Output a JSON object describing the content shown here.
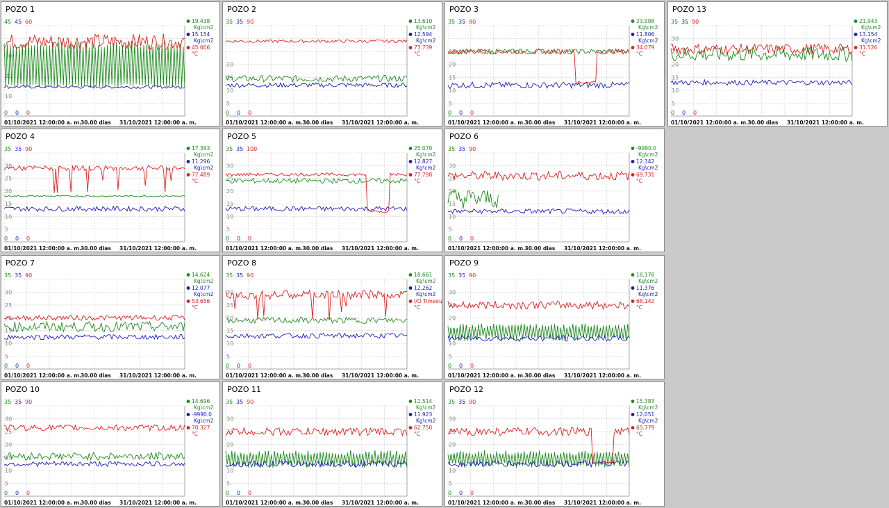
{
  "colors": {
    "pressure_1": "#1d8a1d",
    "pressure_2": "#1a1ab4",
    "temperature": "#dc1e1e",
    "grid": "#c8c8c8"
  },
  "x_axis": {
    "start": "01/10/2021 12:00:00 a. m.",
    "span": "30.00 dias",
    "end": "31/10/2021 12:00:00 a. m."
  },
  "chart_data": [
    {
      "id": "p1",
      "title": "POZO 1",
      "type": "line",
      "top": {
        "green": "45",
        "blue": "45",
        "red": "60"
      },
      "bottom": {
        "green": "0",
        "blue": "0",
        "red": "0"
      },
      "yticks": [
        "30",
        "20",
        "10"
      ],
      "ylim": [
        0,
        45
      ],
      "series": [
        {
          "name": "Kg\\cm2",
          "value": "19.438",
          "color": "#1d8a1d",
          "level": 34,
          "noise": 7,
          "pattern": "osc",
          "osc_low": 14
        },
        {
          "name": "Kg\\cm2",
          "value": "15.154",
          "color": "#1a1ab4",
          "level": 14.5,
          "noise": 0.8,
          "pattern": "flat"
        },
        {
          "name": "°C",
          "value": "45.006",
          "color": "#dc1e1e",
          "level": 37,
          "noise": 4,
          "pattern": "noisy"
        }
      ]
    },
    {
      "id": "p2",
      "title": "POZO 2",
      "type": "line",
      "top": {
        "green": "35",
        "blue": "35",
        "red": "90"
      },
      "bottom": {
        "green": "0",
        "blue": "0",
        "red": "0"
      },
      "yticks": [
        "20",
        "15",
        "10",
        "5"
      ],
      "ylim": [
        0,
        35
      ],
      "series": [
        {
          "name": "Kg\\cm2",
          "value": "13.610",
          "color": "#1d8a1d",
          "level": 14.5,
          "noise": 1.3,
          "pattern": "noisy"
        },
        {
          "name": "Kg\\cm2",
          "value": "12.594",
          "color": "#1a1ab4",
          "level": 12,
          "noise": 0.9,
          "pattern": "noisy"
        },
        {
          "name": "°C",
          "value": "73.739",
          "color": "#dc1e1e",
          "level": 29,
          "noise": 0.6,
          "pattern": "flat"
        }
      ]
    },
    {
      "id": "p3",
      "title": "POZO 3",
      "type": "line",
      "top": {
        "green": "35",
        "blue": "35",
        "red": "90"
      },
      "bottom": {
        "green": "0",
        "blue": "0",
        "red": "0"
      },
      "yticks": [
        "25",
        "20",
        "15",
        "10",
        "5"
      ],
      "ylim": [
        0,
        35
      ],
      "series": [
        {
          "name": "Kg\\cm2",
          "value": "23.908",
          "color": "#1d8a1d",
          "level": 25,
          "noise": 1.0,
          "pattern": "noisy"
        },
        {
          "name": "Kg\\cm2",
          "value": "11.806",
          "color": "#1a1ab4",
          "level": 12,
          "noise": 1.2,
          "pattern": "noisy"
        },
        {
          "name": "°C",
          "value": "34.079",
          "color": "#dc1e1e",
          "level": 25,
          "noise": 1.0,
          "pattern": "drop",
          "drop_level": 13,
          "drop_from": 0.7
        }
      ]
    },
    {
      "id": "p13",
      "title": "POZO 13",
      "type": "line",
      "top": {
        "green": "35",
        "blue": "35",
        "red": "90"
      },
      "bottom": {
        "green": "0",
        "blue": "0",
        "red": "0"
      },
      "yticks": [
        "30",
        "25",
        "20",
        "15",
        "10",
        "5"
      ],
      "ylim": [
        0,
        35
      ],
      "series": [
        {
          "name": "Kg\\cm2",
          "value": "21.943",
          "color": "#1d8a1d",
          "level": 24,
          "noise": 3,
          "pattern": "noisy"
        },
        {
          "name": "Kg\\cm2",
          "value": "13.154",
          "color": "#1a1ab4",
          "level": 13,
          "noise": 1.0,
          "pattern": "noisy"
        },
        {
          "name": "°C",
          "value": "31.526",
          "color": "#dc1e1e",
          "level": 26,
          "noise": 2,
          "pattern": "noisy"
        }
      ]
    },
    {
      "id": "p4",
      "title": "POZO 4",
      "type": "line",
      "top": {
        "green": "35",
        "blue": "35",
        "red": "90"
      },
      "bottom": {
        "green": "0",
        "blue": "0",
        "red": "0"
      },
      "yticks": [
        "30",
        "25",
        "20",
        "15",
        "10",
        "5"
      ],
      "ylim": [
        0,
        35
      ],
      "series": [
        {
          "name": "Kg\\cm2",
          "value": "17.393",
          "color": "#1d8a1d",
          "level": 18,
          "noise": 0.3,
          "pattern": "flat"
        },
        {
          "name": "Kg\\cm2",
          "value": "11.296",
          "color": "#1a1ab4",
          "level": 13,
          "noise": 1.0,
          "pattern": "noisy"
        },
        {
          "name": "°C",
          "value": "77.489",
          "color": "#dc1e1e",
          "level": 29,
          "noise": 1.0,
          "pattern": "spikes"
        }
      ]
    },
    {
      "id": "p5",
      "title": "POZO 5",
      "type": "line",
      "top": {
        "green": "35",
        "blue": "35",
        "red": "100"
      },
      "bottom": {
        "green": "0",
        "blue": "0",
        "red": "0"
      },
      "yticks": [
        "30",
        "25",
        "20",
        "15",
        "10",
        "5"
      ],
      "ylim": [
        0,
        35
      ],
      "series": [
        {
          "name": "Kg\\cm2",
          "value": "25.070",
          "color": "#1d8a1d",
          "level": 24,
          "noise": 1.0,
          "pattern": "noisy"
        },
        {
          "name": "Kg\\cm2",
          "value": "12.827",
          "color": "#1a1ab4",
          "level": 13,
          "noise": 1.0,
          "pattern": "noisy"
        },
        {
          "name": "°C",
          "value": "77.798",
          "color": "#dc1e1e",
          "level": 26.5,
          "noise": 0.6,
          "pattern": "drop",
          "drop_level": 12,
          "drop_from": 0.78
        }
      ]
    },
    {
      "id": "p6",
      "title": "POZO 6",
      "type": "line",
      "top": {
        "green": "35",
        "blue": "35",
        "red": "90"
      },
      "bottom": {
        "green": "0",
        "blue": "0",
        "red": "0"
      },
      "yticks": [
        "30",
        "25",
        "20",
        "15",
        "10",
        "5"
      ],
      "ylim": [
        0,
        35
      ],
      "series": [
        {
          "name": "Kg\\cm2",
          "value": "-9990.0",
          "color": "#1d8a1d",
          "level": 17,
          "noise": 4,
          "pattern": "partial",
          "until": 0.28
        },
        {
          "name": "Kg\\cm2",
          "value": "12.342",
          "color": "#1a1ab4",
          "level": 12,
          "noise": 1.0,
          "pattern": "noisy"
        },
        {
          "name": "°C",
          "value": "69.731",
          "color": "#dc1e1e",
          "level": 26,
          "noise": 1.8,
          "pattern": "noisy"
        }
      ]
    },
    {
      "id": "p7",
      "title": "POZO 7",
      "type": "line",
      "top": {
        "green": "35",
        "blue": "35",
        "red": "90"
      },
      "bottom": {
        "green": "0",
        "blue": "0",
        "red": "0"
      },
      "yticks": [
        "30",
        "25",
        "20",
        "15",
        "10",
        "5"
      ],
      "ylim": [
        0,
        35
      ],
      "series": [
        {
          "name": "Kg\\cm2",
          "value": "14.624",
          "color": "#1d8a1d",
          "level": 16.5,
          "noise": 2,
          "pattern": "noisy"
        },
        {
          "name": "Kg\\cm2",
          "value": "12.077",
          "color": "#1a1ab4",
          "level": 12.5,
          "noise": 1.0,
          "pattern": "noisy"
        },
        {
          "name": "°C",
          "value": "53.656",
          "color": "#dc1e1e",
          "level": 20,
          "noise": 1.0,
          "pattern": "noisy"
        }
      ]
    },
    {
      "id": "p8",
      "title": "POZO 8",
      "type": "line",
      "top": {
        "green": "35",
        "blue": "35",
        "red": "90"
      },
      "bottom": {
        "green": "0",
        "blue": "0",
        "red": "0"
      },
      "yticks": [
        "30",
        "25",
        "20",
        "15",
        "10",
        "5"
      ],
      "ylim": [
        0,
        35
      ],
      "series": [
        {
          "name": "Kg\\cm2",
          "value": "18.661",
          "color": "#1d8a1d",
          "level": 19,
          "noise": 1.2,
          "pattern": "noisy"
        },
        {
          "name": "Kg\\cm2",
          "value": "12.262",
          "color": "#1a1ab4",
          "level": 13,
          "noise": 1.0,
          "pattern": "noisy"
        },
        {
          "name": "°C",
          "value": "I/O Timeout",
          "color": "#dc1e1e",
          "level": 29,
          "noise": 1.8,
          "pattern": "spikes"
        }
      ]
    },
    {
      "id": "p9",
      "title": "POZO 9",
      "type": "line",
      "top": {
        "green": "35",
        "blue": "35",
        "red": "90"
      },
      "bottom": {
        "green": "0",
        "blue": "0",
        "red": "0"
      },
      "yticks": [
        "30",
        "25",
        "20",
        "15",
        "10",
        "5"
      ],
      "ylim": [
        0,
        35
      ],
      "series": [
        {
          "name": "Kg\\cm2",
          "value": "16.176",
          "color": "#1d8a1d",
          "level": 16,
          "noise": 3.5,
          "pattern": "osc",
          "osc_low": 11
        },
        {
          "name": "Kg\\cm2",
          "value": "11.376",
          "color": "#1a1ab4",
          "level": 12,
          "noise": 1.2,
          "pattern": "noisy"
        },
        {
          "name": "°C",
          "value": "68.142",
          "color": "#dc1e1e",
          "level": 25,
          "noise": 1.6,
          "pattern": "noisy"
        }
      ]
    },
    {
      "id": "p10",
      "title": "POZO 10",
      "type": "line",
      "top": {
        "green": "35",
        "blue": "35",
        "red": "90"
      },
      "bottom": {
        "green": "0",
        "blue": "0",
        "red": "0"
      },
      "yticks": [
        "30",
        "25",
        "20",
        "15",
        "10",
        "5"
      ],
      "ylim": [
        0,
        35
      ],
      "series": [
        {
          "name": "Kg\\cm2",
          "value": "14.696",
          "color": "#1d8a1d",
          "level": 15.5,
          "noise": 1.5,
          "pattern": "noisy"
        },
        {
          "name": "Kg\\cm2",
          "value": "-9990.0",
          "color": "#1a1ab4",
          "level": 12.5,
          "noise": 1.0,
          "pattern": "noisy"
        },
        {
          "name": "°C",
          "value": "70.327",
          "color": "#dc1e1e",
          "level": 26.5,
          "noise": 1.2,
          "pattern": "noisy"
        }
      ]
    },
    {
      "id": "p11",
      "title": "POZO 11",
      "type": "line",
      "top": {
        "green": "35",
        "blue": "35",
        "red": "90"
      },
      "bottom": {
        "green": "0",
        "blue": "0",
        "red": "0"
      },
      "yticks": [
        "30",
        "25",
        "20",
        "15",
        "10",
        "5"
      ],
      "ylim": [
        0,
        35
      ],
      "series": [
        {
          "name": "Kg\\cm2",
          "value": "12.514",
          "color": "#1d8a1d",
          "level": 16,
          "noise": 3.5,
          "pattern": "osc",
          "osc_low": 11
        },
        {
          "name": "Kg\\cm2",
          "value": "11.923",
          "color": "#1a1ab4",
          "level": 12.5,
          "noise": 1.2,
          "pattern": "noisy"
        },
        {
          "name": "°C",
          "value": "62.750",
          "color": "#dc1e1e",
          "level": 25,
          "noise": 1.6,
          "pattern": "noisy"
        }
      ]
    },
    {
      "id": "p12",
      "title": "POZO 12",
      "type": "line",
      "top": {
        "green": "35",
        "blue": "35",
        "red": "90"
      },
      "bottom": {
        "green": "0",
        "blue": "0",
        "red": "0"
      },
      "yticks": [
        "30",
        "25",
        "20",
        "15",
        "10",
        "5"
      ],
      "ylim": [
        0,
        35
      ],
      "series": [
        {
          "name": "Kg\\cm2",
          "value": "15.383",
          "color": "#1d8a1d",
          "level": 16,
          "noise": 3.5,
          "pattern": "osc",
          "osc_low": 11
        },
        {
          "name": "Kg\\cm2",
          "value": "12.051",
          "color": "#1a1ab4",
          "level": 12.5,
          "noise": 1.2,
          "pattern": "noisy"
        },
        {
          "name": "°C",
          "value": "65.779",
          "color": "#dc1e1e",
          "level": 25,
          "noise": 1.6,
          "pattern": "drop",
          "drop_level": 13,
          "drop_from": 0.79
        }
      ]
    }
  ]
}
